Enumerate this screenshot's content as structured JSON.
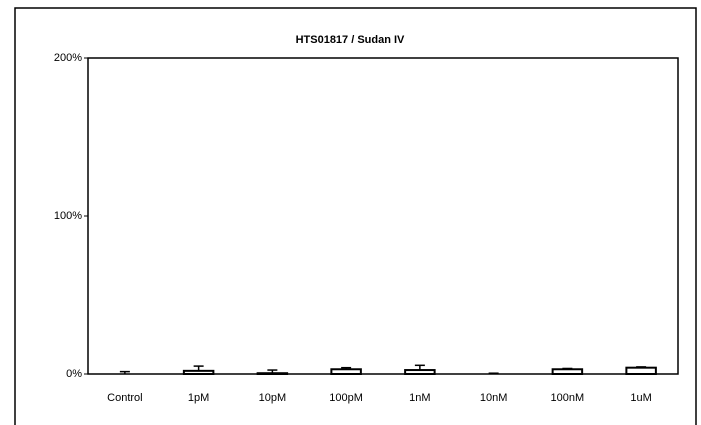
{
  "chart_data": {
    "type": "bar",
    "title": "HTS01817 / Sudan IV",
    "categories": [
      "Control",
      "1pM",
      "10pM",
      "100pM",
      "1nM",
      "10nM",
      "100nM",
      "1uM"
    ],
    "values": [
      0,
      2,
      0.5,
      3,
      2.5,
      0,
      3,
      4
    ],
    "errors": [
      1.5,
      3,
      2,
      1,
      3,
      0.5,
      0.5,
      0.5
    ],
    "color": "#ffffff",
    "ylim": [
      0,
      200
    ],
    "yticks": [
      {
        "value": 0,
        "label": "0%"
      },
      {
        "value": 100,
        "label": "100%"
      },
      {
        "value": 200,
        "label": "200%"
      }
    ],
    "grid": false
  }
}
